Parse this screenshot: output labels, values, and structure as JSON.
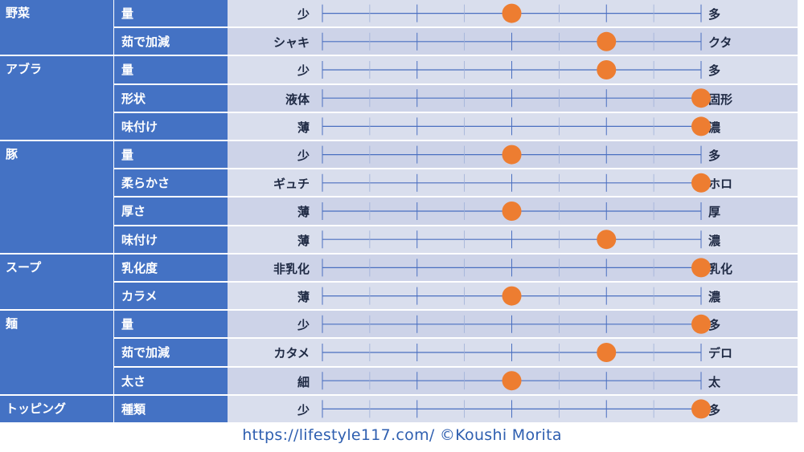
{
  "colors": {
    "header_bg": "#4472c4",
    "row_bg_light": "#d9deed",
    "row_bg_dark": "#cdd3e8",
    "axis_line": "#4a6fc0",
    "marker": "#ed7d31",
    "footer_text": "#2f5fb0"
  },
  "scale_positions": 5,
  "rows": [
    {
      "category": "野菜",
      "attribute": "量",
      "left": "少",
      "right": "多",
      "value": 3
    },
    {
      "category": "",
      "attribute": "茹で加減",
      "left": "シャキ",
      "right": "クタ",
      "value": 4
    },
    {
      "category": "アブラ",
      "attribute": "量",
      "left": "少",
      "right": "多",
      "value": 4
    },
    {
      "category": "",
      "attribute": "形状",
      "left": "液体",
      "right": "固形",
      "value": 5
    },
    {
      "category": "",
      "attribute": "味付け",
      "left": "薄",
      "right": "濃",
      "value": 5
    },
    {
      "category": "豚",
      "attribute": "量",
      "left": "少",
      "right": "多",
      "value": 3
    },
    {
      "category": "",
      "attribute": "柔らかさ",
      "left": "ギュチ",
      "right": "ホロ",
      "value": 5
    },
    {
      "category": "",
      "attribute": "厚さ",
      "left": "薄",
      "right": "厚",
      "value": 3
    },
    {
      "category": "",
      "attribute": "味付け",
      "left": "薄",
      "right": "濃",
      "value": 4
    },
    {
      "category": "スープ",
      "attribute": "乳化度",
      "left": "非乳化",
      "right": "乳化",
      "value": 5
    },
    {
      "category": "",
      "attribute": "カラメ",
      "left": "薄",
      "right": "濃",
      "value": 3
    },
    {
      "category": "麺",
      "attribute": "量",
      "left": "少",
      "right": "多",
      "value": 5
    },
    {
      "category": "",
      "attribute": "茹で加減",
      "left": "カタメ",
      "right": "デロ",
      "value": 4
    },
    {
      "category": "",
      "attribute": "太さ",
      "left": "細",
      "right": "太",
      "value": 3
    },
    {
      "category": "トッピング",
      "attribute": "種類",
      "left": "少",
      "right": "多",
      "value": 5
    }
  ],
  "footer": "https://lifestyle117.com/  ©Koushi Morita"
}
